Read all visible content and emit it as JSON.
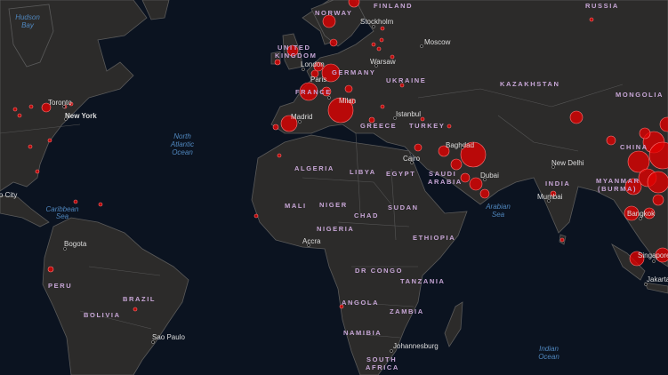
{
  "map": {
    "colors": {
      "ocean": "#0b1320",
      "land": "#2c2b2a",
      "country_label": "#c7a6d6",
      "city_label": "#dddddd",
      "ocean_label": "#4f86bd",
      "case_marker": "#e10000"
    },
    "oceans": {
      "hudson": [
        "Hudson",
        "Bay"
      ],
      "atlantic": [
        "North",
        "Atlantic",
        "Ocean"
      ],
      "caribbean": [
        "Caribbean",
        "Sea"
      ],
      "arabian": [
        "Arabian",
        "Sea"
      ],
      "indian": [
        "Indian",
        "Ocean"
      ]
    },
    "countries": {
      "norway": "NORWAY",
      "finland": "FINLAND",
      "russia": "RUSSIA",
      "uk1": "UNITED",
      "uk2": "KINGDOM",
      "germany": "GERMANY",
      "france": "FRANCE",
      "ukraine": "UKRAINE",
      "kazakhstan": "KAZAKHSTAN",
      "mongolia": "MONGOLIA",
      "turkey": "TURKEY",
      "greece": "GREECE",
      "china": "CHINA",
      "algeria": "ALGERIA",
      "libya": "LIBYA",
      "egypt": "EGYPT",
      "saudi1": "SAUDI",
      "saudi2": "ARABIA",
      "india": "INDIA",
      "myanmar1": "MYANMAR",
      "myanmar2": "(BURMA)",
      "mali": "MALI",
      "niger": "NIGER",
      "chad": "CHAD",
      "sudan": "SUDAN",
      "nigeria": "NIGERIA",
      "ethiopia": "ETHIOPIA",
      "drcongo": "DR CONGO",
      "tanzania": "TANZANIA",
      "angola": "ANGOLA",
      "zambia": "ZAMBIA",
      "namibia": "NAMIBIA",
      "sa1": "SOUTH",
      "sa2": "AFRICA",
      "brazil": "BRAZIL",
      "bolivia": "BOLIVIA",
      "peru": "PERU"
    },
    "cities": {
      "toronto": "Toronto",
      "newyork": "New York",
      "london": "London",
      "paris": "Paris",
      "milan": "Milan",
      "madrid": "Madrid",
      "stockholm": "Stockholm",
      "moscow": "Moscow",
      "warsaw": "Warsaw",
      "istanbul": "Istanbul",
      "baghdad": "Baghdad",
      "cairo": "Cairo",
      "dubai": "Dubai",
      "newdelhi": "New Delhi",
      "mumbai": "Mumbai",
      "bangkok": "Bangkok",
      "singapore": "Singapore",
      "jakarta": "Jakarta",
      "accra": "Accra",
      "bogota": "Bogota",
      "saopaulo": "Sao Paulo",
      "johannesburg": "Johannesburg",
      "mexicocity": "Mexico City"
    }
  }
}
